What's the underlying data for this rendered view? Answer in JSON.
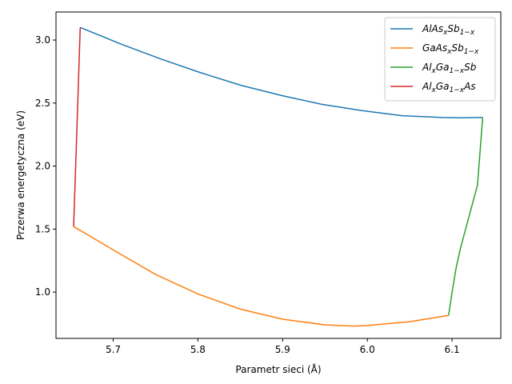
{
  "chart_data": {
    "type": "line",
    "title": "",
    "xlabel": "Parametr sieci (Å)",
    "ylabel": "Przerwa energetyczna (eV)",
    "xlim": [
      5.6325,
      6.1575
    ],
    "ylim": [
      0.6325,
      3.2225
    ],
    "xticks": [
      5.7,
      5.8,
      5.9,
      6.0,
      6.1
    ],
    "yticks": [
      1.0,
      1.5,
      2.0,
      2.5,
      3.0
    ],
    "xtick_labels": [
      "5.7",
      "5.8",
      "5.9",
      "6.0",
      "6.1"
    ],
    "ytick_labels": [
      "1.0",
      "1.5",
      "2.0",
      "2.5",
      "3.0"
    ],
    "grid": false,
    "legend_position": "top-right",
    "series": [
      {
        "name": "AlAs_xSb_{1-x}",
        "color": "#1f77b4",
        "x": [
          5.6611,
          5.7086,
          5.7561,
          5.8036,
          5.8511,
          5.8986,
          5.9461,
          5.9936,
          6.0411,
          6.0886,
          6.1118,
          6.1361
        ],
        "y": [
          3.1,
          2.97,
          2.85,
          2.74,
          2.64,
          2.56,
          2.49,
          2.44,
          2.4,
          2.385,
          2.383,
          2.386
        ]
      },
      {
        "name": "GaAs_xSb_{1-x}",
        "color": "#ff7f0e",
        "x": [
          5.6533,
          5.7,
          5.75,
          5.8,
          5.85,
          5.9,
          5.95,
          5.985,
          6.0,
          6.05,
          6.0959
        ],
        "y": [
          1.52,
          1.335,
          1.14,
          0.985,
          0.865,
          0.785,
          0.74,
          0.73,
          0.735,
          0.765,
          0.815
        ]
      },
      {
        "name": "Al_xGa_{1-x}Sb",
        "color": "#2ca02c",
        "x": [
          6.0959,
          6.1,
          6.105,
          6.11,
          6.12,
          6.13,
          6.1361
        ],
        "y": [
          0.815,
          1.0,
          1.2,
          1.35,
          1.6,
          1.85,
          2.386
        ]
      },
      {
        "name": "Al_xGa_{1-x}As",
        "color": "#d62728",
        "x": [
          5.6533,
          5.6572,
          5.6611
        ],
        "y": [
          1.52,
          2.3,
          3.1
        ]
      }
    ],
    "legend": [
      {
        "base1": "AlAs",
        "sub1": "x",
        "base2": "Sb",
        "sub2": "1−x",
        "base3": ""
      },
      {
        "base1": "GaAs",
        "sub1": "x",
        "base2": "Sb",
        "sub2": "1−x",
        "base3": ""
      },
      {
        "base1": "Al",
        "sub1": "x",
        "base2": "Ga",
        "sub2": "1−x",
        "base3": "Sb"
      },
      {
        "base1": "Al",
        "sub1": "x",
        "base2": "Ga",
        "sub2": "1−x",
        "base3": "As"
      }
    ]
  }
}
